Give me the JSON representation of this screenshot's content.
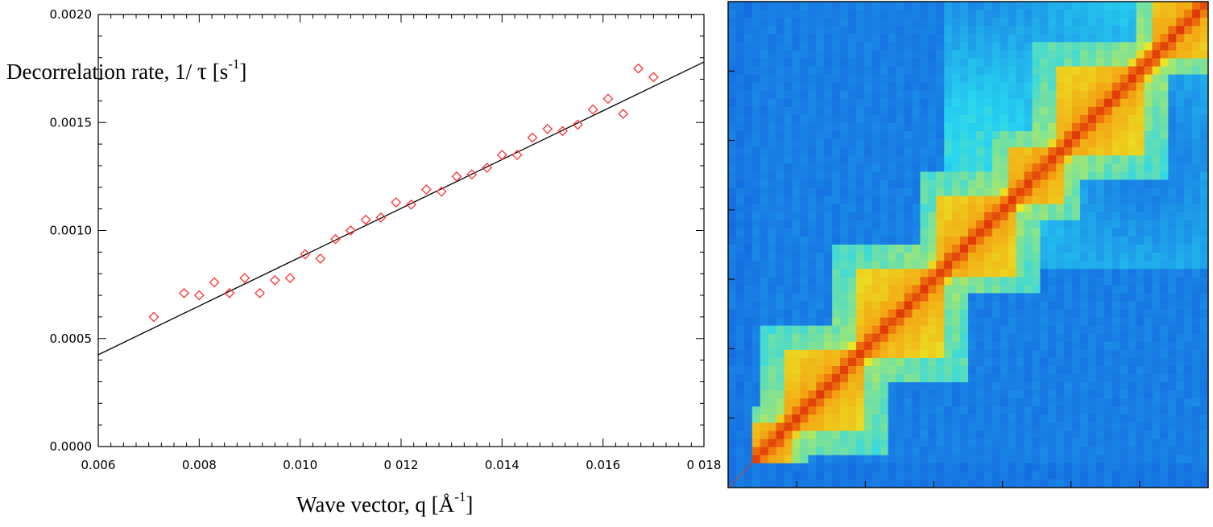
{
  "chart_data": [
    {
      "type": "scatter",
      "title": "",
      "xlabel_text": "Wave vector, q [Å",
      "xlabel_sup": "-1",
      "xlabel_close": "]",
      "ylabel_text": "Decorrelation rate, 1/ ",
      "ylabel_tau": "τ",
      "ylabel_mid": " [s",
      "ylabel_sup": "-1",
      "ylabel_close": "]",
      "xlim": [
        0.006,
        0.018
      ],
      "ylim": [
        0.0,
        0.002
      ],
      "xticks": [
        "0.006",
        "0.008",
        "0.010",
        "0 012",
        "0.014",
        "0.016",
        "0 018"
      ],
      "xtick_values": [
        0.006,
        0.008,
        0.01,
        0.012,
        0.014,
        0.016,
        0.018
      ],
      "yticks": [
        "0.0000",
        "0.0005",
        "0.0010",
        "0.0015",
        "0.0020"
      ],
      "ytick_values": [
        0.0,
        0.0005,
        0.001,
        0.0015,
        0.002
      ],
      "grid": false,
      "marker_color": "#ff3030",
      "line_color": "#000000",
      "points": {
        "x": [
          0.0071,
          0.0077,
          0.008,
          0.0083,
          0.0086,
          0.0089,
          0.0092,
          0.0095,
          0.0098,
          0.0101,
          0.0104,
          0.0107,
          0.011,
          0.0113,
          0.0116,
          0.0119,
          0.0122,
          0.0125,
          0.0128,
          0.0131,
          0.0134,
          0.0137,
          0.014,
          0.0143,
          0.0146,
          0.0149,
          0.0152,
          0.0155,
          0.0158,
          0.0161,
          0.0164,
          0.0167,
          0.017
        ],
        "y": [
          0.0006,
          0.00071,
          0.0007,
          0.00076,
          0.00071,
          0.00078,
          0.00071,
          0.00077,
          0.00078,
          0.00089,
          0.00087,
          0.00096,
          0.001,
          0.00105,
          0.00106,
          0.00113,
          0.00112,
          0.00119,
          0.00118,
          0.00125,
          0.00126,
          0.00129,
          0.00135,
          0.00135,
          0.00143,
          0.00147,
          0.00146,
          0.00149,
          0.00156,
          0.00161,
          0.00154,
          0.00175,
          0.00171
        ]
      },
      "fit_line": {
        "x": [
          0.006,
          0.018
        ],
        "y": [
          0.000425,
          0.00178
        ]
      }
    },
    {
      "type": "heatmap",
      "title": "",
      "colormap": [
        "#0a3fd6",
        "#1a86e6",
        "#28d6f0",
        "#e8f028",
        "#f59a10",
        "#e03808"
      ],
      "note_axes": "no tick labels"
    }
  ]
}
